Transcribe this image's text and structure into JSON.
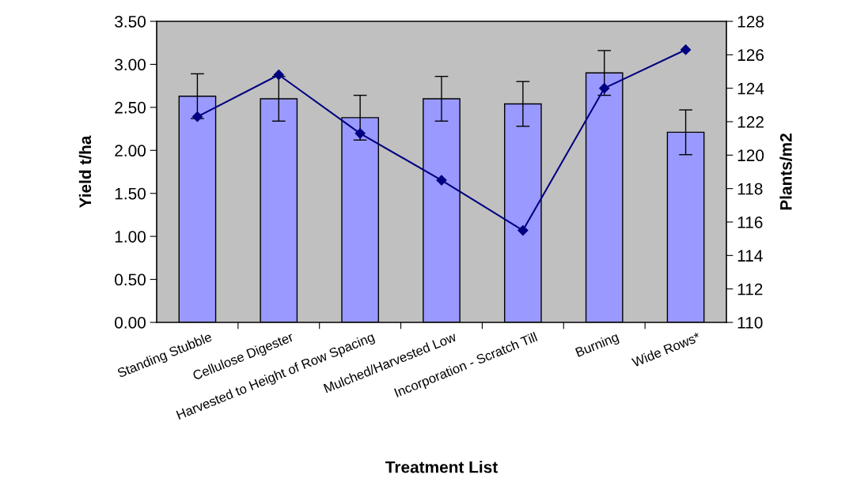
{
  "chart_data": {
    "type": "bar",
    "xlabel": "Treatment List",
    "ylabel": "Yield t/ha",
    "y2label": "Plants/m2",
    "categories": [
      "Standing Stubble",
      "Cellulose Digester",
      "Harvested to Height of Row Spacing",
      "Mulched/Harvested Low",
      "Incorporation - Scratch Till",
      "Burning",
      "Wide Rows*"
    ],
    "series": [
      {
        "color": "#9999ff",
        "values": [
          2.63,
          2.6,
          2.38,
          2.6,
          2.54,
          2.9,
          2.21
        ],
        "errors": [
          0.26,
          0.26,
          0.26,
          0.26,
          0.26,
          0.26,
          0.26
        ]
      },
      {
        "type": "line",
        "axis": "y2",
        "color": "#000080",
        "values": [
          122.3,
          124.8,
          121.3,
          118.5,
          115.5,
          124.0,
          126.3
        ]
      }
    ],
    "marker": "diamond",
    "line_style": "solid",
    "ylim": [
      0,
      3.5
    ],
    "yticks": [
      {
        "value": 0,
        "label": "0.00"
      },
      {
        "value": 0.5,
        "label": "0.50"
      },
      {
        "value": 1,
        "label": "1.00"
      },
      {
        "value": 1.5,
        "label": "1.50"
      },
      {
        "value": 2,
        "label": "2.00"
      },
      {
        "value": 2.5,
        "label": "2.50"
      },
      {
        "value": 3,
        "label": "3.00"
      },
      {
        "value": 3.5,
        "label": "3.50"
      }
    ],
    "y2lim": [
      110,
      128
    ],
    "y2ticks": [
      110,
      112,
      114,
      116,
      118,
      120,
      122,
      124,
      126,
      128
    ],
    "grid": false,
    "legend": false
  }
}
